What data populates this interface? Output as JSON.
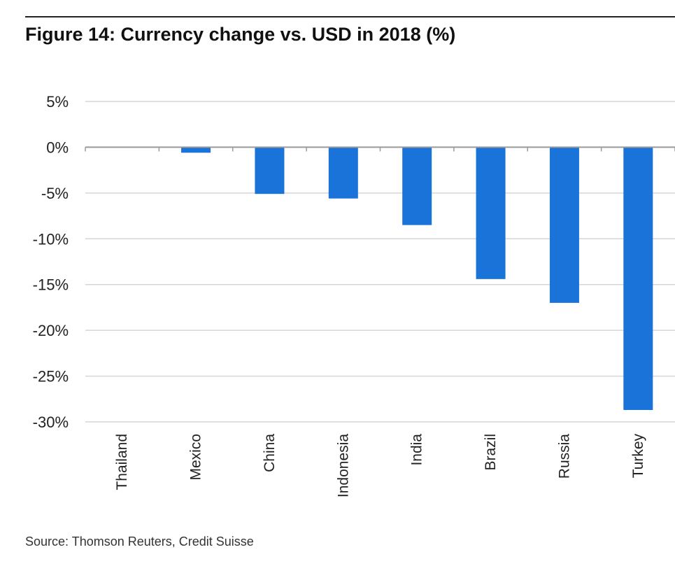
{
  "title": "Figure 14: Currency change vs. USD in 2018 (%)",
  "source": "Source: Thomson Reuters, Credit Suisse",
  "colors": {
    "bar": "#1a73d9",
    "grid": "#d6d6d6",
    "axis": "#9a9a9a",
    "text": "#222222"
  },
  "chart_data": {
    "type": "bar",
    "title": "Figure 14: Currency change vs. USD in 2018 (%)",
    "xlabel": "",
    "ylabel": "",
    "categories": [
      "Thailand",
      "Mexico",
      "China",
      "Indonesia",
      "India",
      "Brazil",
      "Russia",
      "Turkey"
    ],
    "values": [
      0,
      -0.6,
      -5.1,
      -5.6,
      -8.5,
      -14.4,
      -17.0,
      -28.7
    ],
    "ylim": [
      -30,
      5
    ],
    "yticks": [
      5,
      0,
      -5,
      -10,
      -15,
      -20,
      -25,
      -30
    ],
    "ytick_labels": [
      "5%",
      "0%",
      "-5%",
      "-10%",
      "-15%",
      "-20%",
      "-25%",
      "-30%"
    ],
    "grid": true,
    "legend": "none"
  }
}
